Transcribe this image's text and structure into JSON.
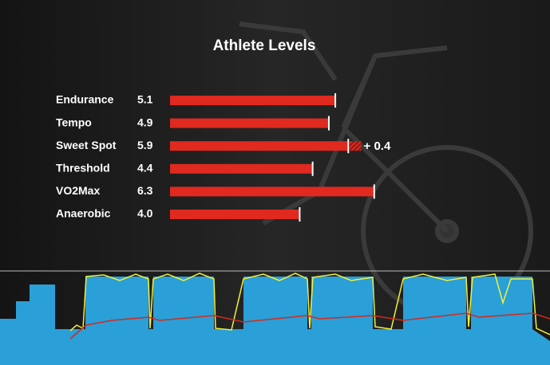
{
  "chart_data": {
    "type": "bar",
    "title": "Athlete Levels",
    "categories": [
      "Endurance",
      "Tempo",
      "Sweet Spot",
      "Threshold",
      "VO2Max",
      "Anaerobic"
    ],
    "values": [
      5.1,
      4.9,
      5.9,
      4.4,
      6.3,
      4.0
    ],
    "value_labels": [
      "5.1",
      "4.9",
      "5.9",
      "4.4",
      "6.3",
      "4.0"
    ],
    "increase_values": [
      null,
      null,
      0.4,
      null,
      null,
      null
    ],
    "increase_labels": [
      null,
      null,
      "+ 0.4",
      null,
      null,
      null
    ],
    "color": "#e0291f"
  }
}
